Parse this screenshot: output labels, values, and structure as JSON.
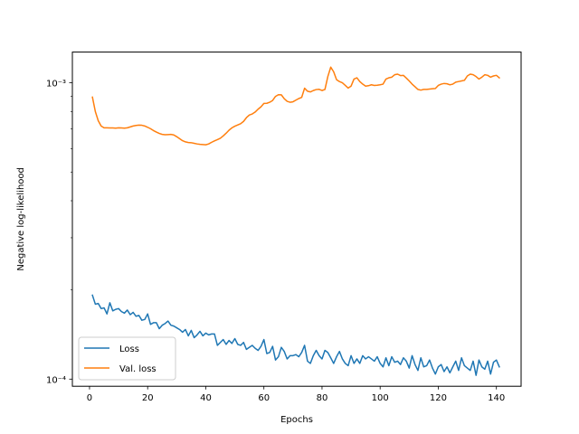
{
  "chart_data": {
    "type": "line",
    "xlabel": "Epochs",
    "ylabel": "Negative log-likelihood",
    "yscale": "log",
    "xlim": [
      -5.9,
      148.5
    ],
    "ylim": [
      9.46e-05,
      0.00127
    ],
    "x_ticks": [
      0,
      20,
      40,
      60,
      80,
      100,
      120,
      140
    ],
    "x_tick_labels": [
      "0",
      "20",
      "40",
      "60",
      "80",
      "100",
      "120",
      "140"
    ],
    "y_ticks": [
      0.0001,
      0.001
    ],
    "y_tick_labels": [
      "10⁻⁴",
      "10⁻³"
    ],
    "grid": false,
    "legend_position": "lower-left",
    "series": [
      {
        "name": "Loss",
        "color": "#1f77b4",
        "x": [
          1,
          2,
          3,
          4,
          5,
          6,
          7,
          8,
          9,
          10,
          11,
          12,
          13,
          14,
          15,
          16,
          17,
          18,
          19,
          20,
          21,
          22,
          23,
          24,
          25,
          26,
          27,
          28,
          29,
          30,
          31,
          32,
          33,
          34,
          35,
          36,
          37,
          38,
          39,
          40,
          41,
          42,
          43,
          44,
          45,
          46,
          47,
          48,
          49,
          50,
          51,
          52,
          53,
          54,
          55,
          56,
          57,
          58,
          59,
          60,
          61,
          62,
          63,
          64,
          65,
          66,
          67,
          68,
          69,
          70,
          71,
          72,
          73,
          74,
          75,
          76,
          77,
          78,
          79,
          80,
          81,
          82,
          83,
          84,
          85,
          86,
          87,
          88,
          89,
          90,
          91,
          92,
          93,
          94,
          95,
          96,
          97,
          98,
          99,
          100,
          101,
          102,
          103,
          104,
          105,
          106,
          107,
          108,
          109,
          110,
          111,
          112,
          113,
          114,
          115,
          116,
          117,
          118,
          119,
          120,
          121,
          122,
          123,
          124,
          125,
          126,
          127,
          128,
          129,
          130,
          131,
          132,
          133,
          134,
          135,
          136,
          137,
          138,
          139,
          140,
          141
        ],
        "values": [
          0.000192,
          0.000179,
          0.00018,
          0.000173,
          0.000174,
          0.000166,
          0.000181,
          0.00017,
          0.000172,
          0.000173,
          0.000169,
          0.000167,
          0.000171,
          0.000165,
          0.000168,
          0.000163,
          0.000164,
          0.000158,
          0.000159,
          0.000166,
          0.000153,
          0.000155,
          0.000155,
          0.000148,
          0.000152,
          0.000154,
          0.000157,
          0.000152,
          0.000151,
          0.000149,
          0.000147,
          0.000144,
          0.000147,
          0.00014,
          0.000146,
          0.000138,
          0.000141,
          0.000145,
          0.00014,
          0.000143,
          0.000141,
          0.000142,
          0.000142,
          0.00013,
          0.000133,
          0.000136,
          0.000131,
          0.000135,
          0.000132,
          0.000137,
          0.000131,
          0.00013,
          0.000133,
          0.000126,
          0.000128,
          0.00013,
          0.000127,
          0.000125,
          0.000129,
          0.000136,
          0.000122,
          0.000123,
          0.000129,
          0.000116,
          0.000119,
          0.000128,
          0.000124,
          0.000117,
          0.00012,
          0.00012,
          0.000121,
          0.000119,
          0.000123,
          0.00013,
          0.000115,
          0.000113,
          0.00012,
          0.000125,
          0.00012,
          0.000117,
          0.000125,
          0.000123,
          0.000118,
          0.000113,
          0.000119,
          0.000124,
          0.000117,
          0.000113,
          0.000111,
          0.00012,
          0.000113,
          0.000117,
          0.000113,
          0.00012,
          0.000117,
          0.000119,
          0.000117,
          0.000115,
          0.000119,
          0.000113,
          0.00011,
          0.000118,
          0.000111,
          0.000119,
          0.000114,
          0.000115,
          0.000112,
          0.000118,
          0.000115,
          0.000109,
          0.00012,
          0.000112,
          0.000107,
          0.000118,
          0.00011,
          0.000111,
          0.000116,
          0.000109,
          0.000104,
          0.00011,
          0.000112,
          0.000106,
          0.00011,
          0.000105,
          0.00011,
          0.000115,
          0.000107,
          0.000118,
          0.000111,
          0.000109,
          0.000107,
          0.000115,
          0.000103,
          0.000116,
          0.00011,
          0.000108,
          0.000115,
          0.000104,
          0.000114,
          0.000116,
          0.00011
        ]
      },
      {
        "name": "Val. loss",
        "color": "#ff7f0e",
        "x": [
          1,
          2,
          3,
          4,
          5,
          6,
          7,
          8,
          9,
          10,
          11,
          12,
          13,
          14,
          15,
          16,
          17,
          18,
          19,
          20,
          21,
          22,
          23,
          24,
          25,
          26,
          27,
          28,
          29,
          30,
          31,
          32,
          33,
          34,
          35,
          36,
          37,
          38,
          39,
          40,
          41,
          42,
          43,
          44,
          45,
          46,
          47,
          48,
          49,
          50,
          51,
          52,
          53,
          54,
          55,
          56,
          57,
          58,
          59,
          60,
          61,
          62,
          63,
          64,
          65,
          66,
          67,
          68,
          69,
          70,
          71,
          72,
          73,
          74,
          75,
          76,
          77,
          78,
          79,
          80,
          81,
          82,
          83,
          84,
          85,
          86,
          87,
          88,
          89,
          90,
          91,
          92,
          93,
          94,
          95,
          96,
          97,
          98,
          99,
          100,
          101,
          102,
          103,
          104,
          105,
          106,
          107,
          108,
          109,
          110,
          111,
          112,
          113,
          114,
          115,
          116,
          117,
          118,
          119,
          120,
          121,
          122,
          123,
          124,
          125,
          126,
          127,
          128,
          129,
          130,
          131,
          132,
          133,
          134,
          135,
          136,
          137,
          138,
          139,
          140,
          141
        ],
        "values": [
          0.000895,
          0.0008,
          0.000745,
          0.000715,
          0.000705,
          0.000705,
          0.000704,
          0.000704,
          0.000703,
          0.000705,
          0.000704,
          0.000703,
          0.000705,
          0.00071,
          0.000715,
          0.000718,
          0.00072,
          0.000719,
          0.000715,
          0.000708,
          0.0007,
          0.00069,
          0.000682,
          0.000675,
          0.00067,
          0.000668,
          0.000669,
          0.00067,
          0.000667,
          0.000658,
          0.000648,
          0.000638,
          0.000632,
          0.000629,
          0.000628,
          0.000625,
          0.000622,
          0.00062,
          0.000619,
          0.000618,
          0.000622,
          0.00063,
          0.000637,
          0.000643,
          0.00065,
          0.000662,
          0.000676,
          0.000692,
          0.000705,
          0.000714,
          0.000721,
          0.000728,
          0.000741,
          0.000763,
          0.000779,
          0.000785,
          0.000797,
          0.000815,
          0.00083,
          0.000852,
          0.000853,
          0.00086,
          0.000872,
          0.0009,
          0.000912,
          0.000911,
          0.000884,
          0.000866,
          0.00086,
          0.000863,
          0.000874,
          0.000885,
          0.000893,
          0.000959,
          0.000937,
          0.000932,
          0.000942,
          0.000949,
          0.000951,
          0.000942,
          0.00095,
          0.00105,
          0.00113,
          0.00109,
          0.001025,
          0.00101,
          0.001,
          0.00098,
          0.00096,
          0.000975,
          0.00103,
          0.00104,
          0.00101,
          0.00099,
          0.000975,
          0.000978,
          0.000985,
          0.00098,
          0.000982,
          0.000985,
          0.00099,
          0.00103,
          0.00104,
          0.001045,
          0.001065,
          0.00107,
          0.001058,
          0.00106,
          0.001038,
          0.001015,
          0.00099,
          0.00097,
          0.00095,
          0.000945,
          0.00095,
          0.00095,
          0.000953,
          0.000955,
          0.000957,
          0.00098,
          0.00099,
          0.000995,
          0.000993,
          0.000985,
          0.00099,
          0.001005,
          0.00101,
          0.001015,
          0.00102,
          0.001055,
          0.00107,
          0.001065,
          0.00105,
          0.00103,
          0.001045,
          0.001065,
          0.00106,
          0.001045,
          0.001055,
          0.00106,
          0.00104
        ]
      }
    ]
  }
}
